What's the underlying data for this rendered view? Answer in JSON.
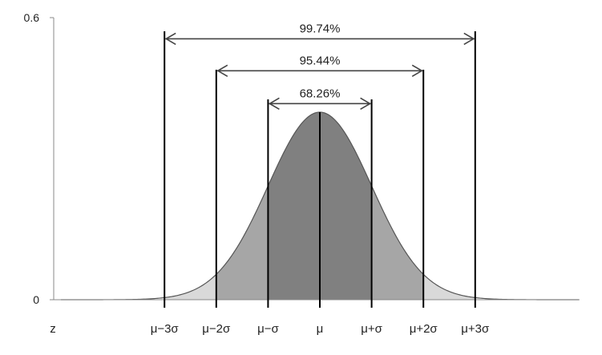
{
  "chart_data": {
    "type": "area",
    "title": "",
    "xlabel": "z",
    "ylabel": "",
    "x_range": [
      -5,
      5
    ],
    "ylim": [
      0,
      0.6
    ],
    "y_ticks": [
      "0",
      "0.6"
    ],
    "grid": false,
    "curve": "standard normal density",
    "peak_value": 0.4,
    "x_ticks": [
      {
        "z": -3,
        "label": "μ−3σ"
      },
      {
        "z": -2,
        "label": "μ−2σ"
      },
      {
        "z": -1,
        "label": "μ−σ"
      },
      {
        "z": 0,
        "label": "μ"
      },
      {
        "z": 1,
        "label": "μ+σ"
      },
      {
        "z": 2,
        "label": "μ+2σ"
      },
      {
        "z": 3,
        "label": "μ+3σ"
      }
    ],
    "regions": [
      {
        "from": -3,
        "to": 3,
        "color": "#d9d9d9"
      },
      {
        "from": -2,
        "to": 2,
        "color": "#a6a6a6"
      },
      {
        "from": -1,
        "to": 1,
        "color": "#808080"
      }
    ],
    "intervals": [
      {
        "from": -3,
        "to": 3,
        "label": "99.74%",
        "y": 0.555
      },
      {
        "from": -2,
        "to": 2,
        "label": "95.44%",
        "y": 0.487
      },
      {
        "from": -1,
        "to": 1,
        "label": "68.26%",
        "y": 0.417
      }
    ],
    "colors": {
      "axis": "#888888",
      "curve": "#555555",
      "lines": "#000000",
      "arrows": "#444444"
    }
  }
}
